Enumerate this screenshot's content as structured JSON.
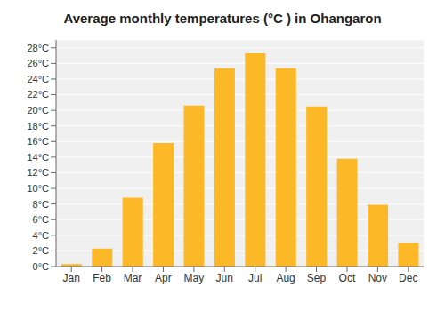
{
  "chart_data": {
    "type": "bar",
    "title": "Average monthly temperatures (°C ) in Ohangaron",
    "categories": [
      "Jan",
      "Feb",
      "Mar",
      "Apr",
      "May",
      "Jun",
      "Jul",
      "Aug",
      "Sep",
      "Oct",
      "Nov",
      "Dec"
    ],
    "values": [
      0.3,
      2.3,
      8.8,
      15.8,
      20.6,
      25.4,
      27.3,
      25.4,
      20.5,
      13.8,
      7.9,
      3.0
    ],
    "color": "#FDB827",
    "ylim": [
      0,
      29
    ],
    "yticks": [
      {
        "value": 0,
        "label": "0°C"
      },
      {
        "value": 2,
        "label": "2°C"
      },
      {
        "value": 4,
        "label": "4°C"
      },
      {
        "value": 6,
        "label": "6°C"
      },
      {
        "value": 8,
        "label": "8°C"
      },
      {
        "value": 10,
        "label": "10°C"
      },
      {
        "value": 12,
        "label": "12°C"
      },
      {
        "value": 14,
        "label": "14°C"
      },
      {
        "value": 16,
        "label": "16°C"
      },
      {
        "value": 18,
        "label": "18°C"
      },
      {
        "value": 20,
        "label": "20°C"
      },
      {
        "value": 22,
        "label": "22°C"
      },
      {
        "value": 24,
        "label": "24°C"
      },
      {
        "value": 26,
        "label": "26°C"
      },
      {
        "value": 28,
        "label": "28°C"
      }
    ],
    "grid": true
  }
}
